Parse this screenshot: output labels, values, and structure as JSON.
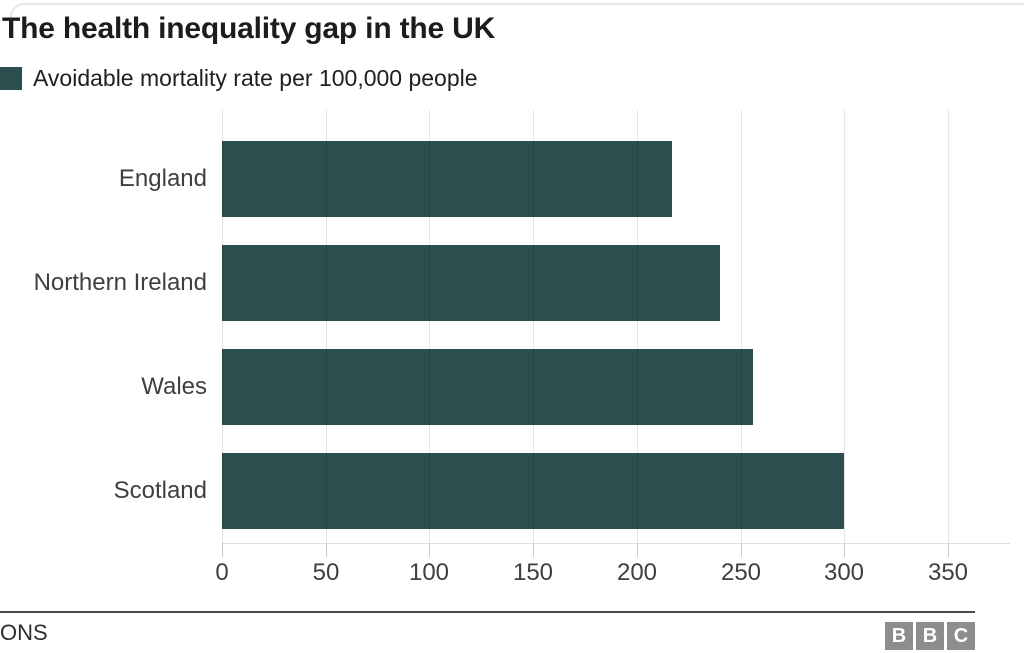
{
  "chart": {
    "title": "The health inequality gap in the UK",
    "legend_label": "Avoidable mortality rate per 100,000 people"
  },
  "chart_data": {
    "type": "bar",
    "orientation": "horizontal",
    "title": "The health inequality gap in the UK",
    "series_name": "Avoidable mortality rate per 100,000 people",
    "categories": [
      "England",
      "Northern Ireland",
      "Wales",
      "Scotland"
    ],
    "values": [
      217,
      240,
      256,
      300
    ],
    "xlabel": "",
    "ylabel": "",
    "xlim": [
      0,
      380
    ],
    "xticks": [
      0,
      50,
      100,
      150,
      200,
      250,
      300,
      350
    ],
    "grid": true,
    "legend_position": "top-left"
  },
  "footer": {
    "source": "ONS",
    "logo_letters": [
      "B",
      "B",
      "C"
    ]
  },
  "colors": {
    "bar": "#2c4e4f",
    "title_text": "#1c1c1c",
    "label_text": "#3f3f3f",
    "gridline": "rgba(0,0,0,0.10)",
    "footer_rule": "#4a4a4a",
    "bbc_square": "#8d8d8d"
  }
}
